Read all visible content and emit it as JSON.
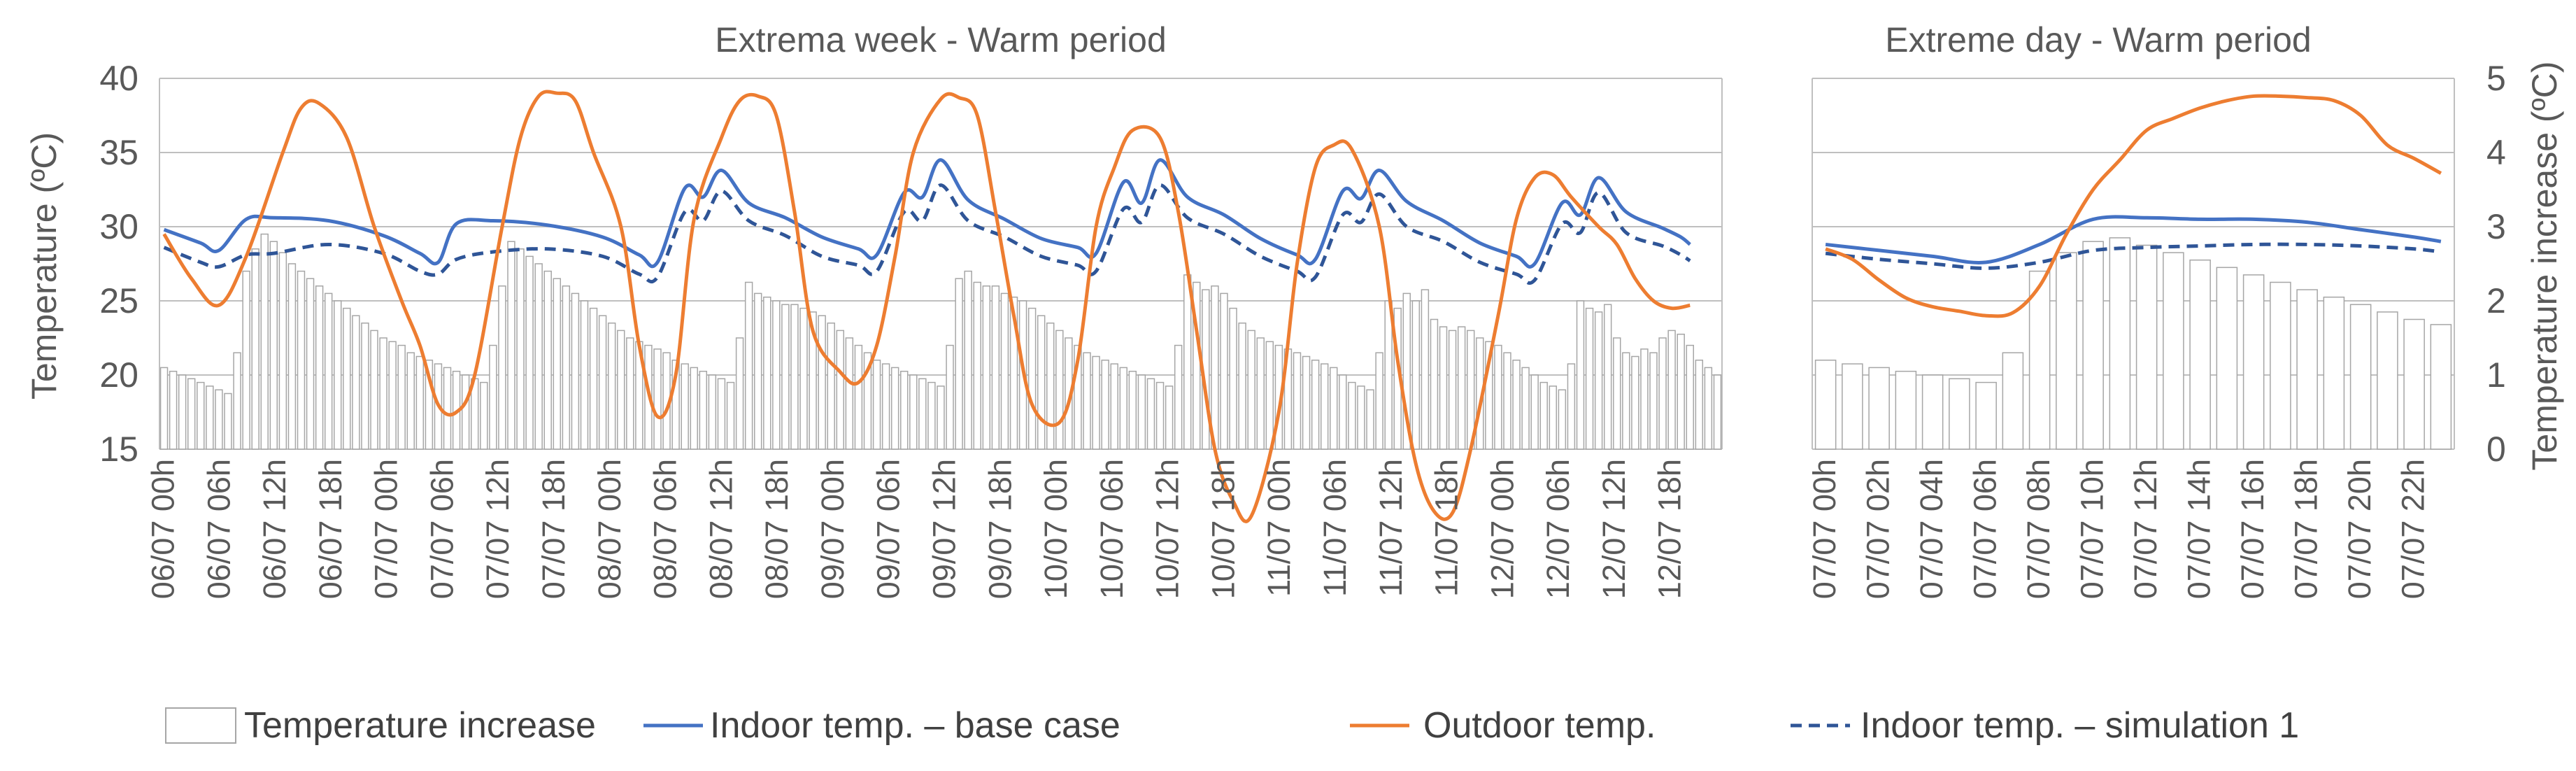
{
  "legend": [
    {
      "key": "increase",
      "label": "Temperature increase"
    },
    {
      "key": "base",
      "label": "Indoor temp. – base case"
    },
    {
      "key": "outdoor",
      "label": "Outdoor temp."
    },
    {
      "key": "sim1",
      "label": "Indoor temp. – simulation 1"
    }
  ],
  "colors": {
    "base": "#4472C4",
    "sim1": "#2F5597",
    "outdoor": "#ED7D31",
    "bar_edge": "#a6a6a6",
    "grid": "#bfbfbf",
    "text": "#595959"
  },
  "chart_data": [
    {
      "type": "bar+line",
      "title": "Extrema week - Warm period",
      "ylabel": "Temperature (ºC)",
      "ylim": [
        15,
        40
      ],
      "yticks": [
        15,
        20,
        25,
        30,
        35,
        40
      ],
      "y2lim": [
        0,
        5
      ],
      "grid": true,
      "tick_labels": [
        "06/07 00h",
        "06/07 06h",
        "06/07 12h",
        "06/07 18h",
        "07/07 00h",
        "07/07 06h",
        "07/07 12h",
        "07/07 18h",
        "08/07 00h",
        "08/07 06h",
        "08/07 12h",
        "08/07 18h",
        "09/07 00h",
        "09/07 06h",
        "09/07 12h",
        "09/07 18h",
        "10/07 00h",
        "10/07 06h",
        "10/07 12h",
        "10/07 18h",
        "11/07 00h",
        "11/07 06h",
        "11/07 12h",
        "11/07 18h",
        "12/07 00h",
        "12/07 06h",
        "12/07 12h",
        "12/07 18h"
      ],
      "series": [
        {
          "name": "Temperature increase",
          "kind": "bar",
          "axis": "right",
          "values": [
            1.1,
            1.05,
            1.0,
            0.95,
            0.9,
            0.85,
            0.8,
            0.75,
            1.3,
            2.4,
            2.7,
            2.9,
            2.8,
            2.65,
            2.5,
            2.4,
            2.3,
            2.2,
            2.1,
            2.0,
            1.9,
            1.8,
            1.7,
            1.6,
            1.5,
            1.45,
            1.4,
            1.3,
            1.25,
            1.2,
            1.15,
            1.1,
            1.05,
            1.0,
            0.95,
            0.9,
            1.4,
            2.2,
            2.8,
            2.7,
            2.6,
            2.5,
            2.4,
            2.3,
            2.2,
            2.1,
            2.0,
            1.9,
            1.8,
            1.7,
            1.6,
            1.5,
            1.45,
            1.4,
            1.35,
            1.3,
            1.2,
            1.15,
            1.1,
            1.05,
            1.0,
            0.95,
            0.9,
            1.5,
            2.25,
            2.1,
            2.05,
            2.0,
            1.95,
            1.95,
            1.9,
            1.85,
            1.8,
            1.7,
            1.6,
            1.5,
            1.4,
            1.3,
            1.2,
            1.15,
            1.1,
            1.05,
            1.0,
            0.95,
            0.9,
            0.85,
            1.4,
            2.3,
            2.4,
            2.25,
            2.2,
            2.2,
            2.1,
            2.05,
            2.0,
            1.9,
            1.8,
            1.7,
            1.6,
            1.5,
            1.4,
            1.3,
            1.25,
            1.2,
            1.15,
            1.1,
            1.05,
            1.0,
            0.95,
            0.9,
            0.85,
            1.4,
            2.35,
            2.25,
            2.15,
            2.2,
            2.1,
            1.9,
            1.7,
            1.6,
            1.5,
            1.45,
            1.4,
            1.35,
            1.3,
            1.25,
            1.2,
            1.15,
            1.1,
            1.0,
            0.9,
            0.85,
            0.8,
            1.3,
            2.0,
            1.9,
            2.1,
            2.0,
            2.15,
            1.75,
            1.65,
            1.6,
            1.65,
            1.6,
            1.5,
            1.45,
            1.4,
            1.3,
            1.2,
            1.1,
            1.0,
            0.9,
            0.85,
            0.8,
            1.15,
            2.0,
            1.9,
            1.85,
            1.95,
            1.5,
            1.3,
            1.25,
            1.35,
            1.3,
            1.5,
            1.6,
            1.55,
            1.4,
            1.2,
            1.1,
            1.0
          ]
        },
        {
          "name": "Indoor temp. – base case",
          "kind": "line",
          "axis": "left",
          "x": [
            0,
            4,
            6,
            9,
            12,
            18,
            24,
            28,
            30,
            32,
            36,
            42,
            48,
            52,
            54,
            57,
            59,
            61,
            64,
            68,
            72,
            76,
            78,
            81,
            83,
            85,
            88,
            92,
            96,
            100,
            102,
            105,
            107,
            109,
            112,
            116,
            120,
            124,
            126,
            129,
            131,
            133,
            136,
            140,
            144,
            148,
            150,
            153,
            155,
            157,
            160,
            164,
            166,
            167
          ],
          "y": [
            29.8,
            28.9,
            28.4,
            30.5,
            30.6,
            30.4,
            29.4,
            28.2,
            27.6,
            30.2,
            30.4,
            30.1,
            29.3,
            28.1,
            27.6,
            32.6,
            32.0,
            33.8,
            31.6,
            30.6,
            29.3,
            28.5,
            28.1,
            32.3,
            32.0,
            34.5,
            31.8,
            30.5,
            29.2,
            28.6,
            28.2,
            33.0,
            31.6,
            34.5,
            32.0,
            30.8,
            29.2,
            28.1,
            27.8,
            32.4,
            31.9,
            33.8,
            31.7,
            30.4,
            28.9,
            28.0,
            27.5,
            31.6,
            30.8,
            33.3,
            31.0,
            29.9,
            29.3,
            28.8
          ]
        },
        {
          "name": "Indoor temp. – simulation 1",
          "kind": "line",
          "style": "dashed",
          "axis": "left",
          "x": [
            0,
            4,
            6,
            9,
            12,
            18,
            24,
            28,
            30,
            32,
            36,
            42,
            48,
            52,
            54,
            57,
            59,
            61,
            64,
            68,
            72,
            76,
            78,
            81,
            83,
            85,
            88,
            92,
            96,
            100,
            102,
            105,
            107,
            109,
            112,
            116,
            120,
            124,
            126,
            129,
            131,
            133,
            136,
            140,
            144,
            148,
            150,
            153,
            155,
            157,
            160,
            164,
            166,
            167
          ],
          "y": [
            28.6,
            27.6,
            27.3,
            28.1,
            28.2,
            28.8,
            28.2,
            27.0,
            26.8,
            27.8,
            28.3,
            28.5,
            28.0,
            26.8,
            26.6,
            31.0,
            30.4,
            32.4,
            30.4,
            29.4,
            28.0,
            27.4,
            27.0,
            31.0,
            30.4,
            32.8,
            30.4,
            29.3,
            28.0,
            27.4,
            27.0,
            31.2,
            30.3,
            32.8,
            30.6,
            29.5,
            28.0,
            27.0,
            26.6,
            30.8,
            30.3,
            32.2,
            30.0,
            29.0,
            27.6,
            26.8,
            26.4,
            30.2,
            29.6,
            32.3,
            29.6,
            28.7,
            28.1,
            27.7
          ]
        },
        {
          "name": "Outdoor temp.",
          "kind": "line",
          "axis": "left",
          "x": [
            0,
            3,
            6,
            9,
            13,
            15,
            17,
            20,
            23,
            26,
            28,
            30,
            32,
            34,
            37,
            39,
            41,
            43,
            45,
            47,
            50,
            52,
            54,
            56,
            58,
            61,
            63,
            65,
            67,
            69,
            71,
            74,
            76,
            78,
            80,
            82,
            85,
            87,
            89,
            91,
            93,
            95,
            98,
            100,
            102,
            104,
            106,
            109,
            111,
            113,
            115,
            117,
            119,
            122,
            124,
            126,
            128,
            130,
            133,
            135,
            137,
            139,
            141,
            143,
            146,
            148,
            150,
            152,
            154,
            157,
            159,
            161,
            163,
            165,
            167
          ],
          "y": [
            29.5,
            26.5,
            24.7,
            28.0,
            35.0,
            38.0,
            38.3,
            36.0,
            30.0,
            25.0,
            22.0,
            18.0,
            17.5,
            20.0,
            30.0,
            36.0,
            38.8,
            39.0,
            38.5,
            35.0,
            30.0,
            22.0,
            17.2,
            20.0,
            30.5,
            36.0,
            38.5,
            38.8,
            37.5,
            31.0,
            23.0,
            20.2,
            19.5,
            22.0,
            28.0,
            35.0,
            38.6,
            38.7,
            37.5,
            31.0,
            24.0,
            18.0,
            16.8,
            21.0,
            30.0,
            34.0,
            36.5,
            36.0,
            31.0,
            23.0,
            15.0,
            11.5,
            10.5,
            17.5,
            27.5,
            34.0,
            35.5,
            35.2,
            30.0,
            21.0,
            14.0,
            10.8,
            10.7,
            15.0,
            24.0,
            30.5,
            33.3,
            33.5,
            32.0,
            30.0,
            28.8,
            26.5,
            25.0,
            24.5,
            24.7
          ]
        }
      ]
    },
    {
      "type": "bar+line",
      "title": "Extreme day - Warm period",
      "ylabel": "Temperature increase (ºC)",
      "y2lim": [
        0,
        5
      ],
      "yticks": [
        0,
        1,
        2,
        3,
        4,
        5
      ],
      "ylim_left": [
        15,
        40
      ],
      "grid": true,
      "tick_labels": [
        "07/07 00h",
        "07/07 02h",
        "07/07 04h",
        "07/07 06h",
        "07/07 08h",
        "07/07 10h",
        "07/07 12h",
        "07/07 14h",
        "07/07 16h",
        "07/07 18h",
        "07/07 20h",
        "07/07 22h"
      ],
      "series": [
        {
          "name": "Temperature increase",
          "kind": "bar",
          "axis": "right",
          "values": [
            1.2,
            1.15,
            1.1,
            1.05,
            1.0,
            0.95,
            0.9,
            1.3,
            2.4,
            2.65,
            2.8,
            2.85,
            2.75,
            2.65,
            2.55,
            2.45,
            2.35,
            2.25,
            2.15,
            2.05,
            1.95,
            1.85,
            1.75,
            1.68
          ]
        },
        {
          "name": "Indoor temp. – base case",
          "kind": "line",
          "axis": "left",
          "x": [
            0,
            2,
            4,
            6,
            8,
            10,
            12,
            14,
            16,
            18,
            20,
            22,
            23
          ],
          "y": [
            28.8,
            28.4,
            28.0,
            27.6,
            28.8,
            30.5,
            30.6,
            30.5,
            30.5,
            30.3,
            29.8,
            29.3,
            29.0
          ]
        },
        {
          "name": "Indoor temp. – simulation 1",
          "kind": "line",
          "style": "dashed",
          "axis": "left",
          "x": [
            0,
            2,
            4,
            6,
            8,
            10,
            12,
            14,
            16,
            18,
            20,
            22,
            23
          ],
          "y": [
            28.2,
            27.8,
            27.5,
            27.2,
            27.6,
            28.4,
            28.6,
            28.7,
            28.8,
            28.8,
            28.7,
            28.5,
            28.3
          ]
        },
        {
          "name": "Outdoor temp.",
          "kind": "line",
          "axis": "left",
          "x": [
            0,
            1,
            2,
            3,
            4,
            5,
            6,
            7,
            8,
            9,
            10,
            11,
            12,
            13,
            14,
            15,
            16,
            17,
            18,
            19,
            20,
            21,
            22,
            23
          ],
          "y": [
            28.5,
            27.8,
            26.4,
            25.2,
            24.6,
            24.3,
            24.0,
            24.2,
            26.0,
            29.5,
            32.5,
            34.5,
            36.5,
            37.3,
            38.0,
            38.5,
            38.8,
            38.8,
            38.7,
            38.5,
            37.5,
            35.5,
            34.6,
            33.6
          ]
        }
      ]
    }
  ]
}
